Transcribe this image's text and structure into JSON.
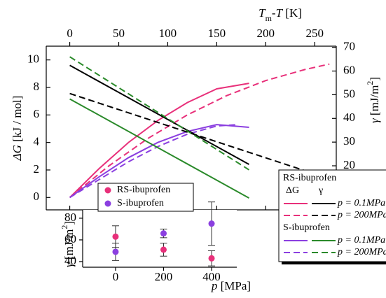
{
  "chart_data": [
    {
      "type": "line",
      "top_axis_label": [
        "T",
        "m",
        "-T",
        " [K]"
      ],
      "ylabel": [
        "ΔG",
        " [kJ / mol]"
      ],
      "y2label": [
        "γ",
        " [mJ/m",
        "2",
        "]"
      ],
      "xlim": [
        -24,
        272
      ],
      "xticks": [
        0,
        50,
        100,
        150,
        200,
        250
      ],
      "ylim": [
        -0.9,
        11
      ],
      "yticks": [
        0,
        2,
        4,
        6,
        8,
        10
      ],
      "y2lim": [
        1.4,
        70.5
      ],
      "y2ticks": [
        20,
        30,
        40,
        50,
        60,
        70
      ],
      "series": [
        {
          "color": "#e8307a",
          "dashed": false,
          "x": [
            0,
            30,
            60,
            90,
            120,
            150,
            183
          ],
          "values": [
            0,
            2.1,
            4.0,
            5.6,
            6.9,
            7.9,
            8.3
          ]
        },
        {
          "color": "#e8307a",
          "dashed": true,
          "x": [
            0,
            40,
            80,
            120,
            160,
            200,
            240,
            265
          ],
          "values": [
            0,
            2.3,
            4.3,
            6.0,
            7.4,
            8.5,
            9.3,
            9.7
          ]
        },
        {
          "color": "#8b3fe0",
          "dashed": false,
          "x": [
            0,
            30,
            60,
            90,
            120,
            150,
            183
          ],
          "values": [
            0,
            1.5,
            2.9,
            4.0,
            4.8,
            5.3,
            5.1
          ]
        },
        {
          "color": "#8b3fe0",
          "dashed": true,
          "x": [
            0,
            30,
            60,
            90,
            120,
            150,
            172
          ],
          "values": [
            0,
            1.3,
            2.6,
            3.7,
            4.6,
            5.2,
            5.3
          ]
        },
        {
          "color": "#000000",
          "dashed": false,
          "axis": "y2",
          "x": [
            0,
            183
          ],
          "values": [
            62.4,
            20.6
          ]
        },
        {
          "color": "#000000",
          "dashed": true,
          "axis": "y2",
          "x": [
            0,
            272
          ],
          "values": [
            50.5,
            13.6
          ]
        },
        {
          "color": "#2a8a2a",
          "dashed": false,
          "axis": "y2",
          "x": [
            0,
            183
          ],
          "values": [
            48.2,
            6.4
          ]
        },
        {
          "color": "#2a8a2a",
          "dashed": true,
          "axis": "y2",
          "x": [
            0,
            183
          ],
          "values": [
            66,
            18.3
          ]
        }
      ],
      "legend": {
        "groups": [
          {
            "title": "RS-ibuprofen",
            "headers": [
              "ΔG",
              "γ"
            ],
            "rows": [
              "p = 0.1MPa",
              "p = 200MPa"
            ]
          },
          {
            "title": "S-ibuprofen",
            "rows": [
              "p = 0.1MPa",
              "p = 200MPa"
            ]
          }
        ]
      }
    },
    {
      "type": "scatter",
      "xlabel": [
        "p",
        " [MPa]"
      ],
      "ylabel": [
        "γ",
        " [mJ/m",
        "2",
        "]"
      ],
      "xlim": [
        -137,
        505
      ],
      "xticks": [
        0,
        200,
        400
      ],
      "ylim": [
        34.8,
        87.7
      ],
      "yticks": [
        40,
        60,
        80
      ],
      "series": [
        {
          "name": "RS-ibuprofen",
          "color": "#e8307a",
          "x": [
            0,
            200,
            400
          ],
          "values": [
            63,
            51,
            43
          ],
          "errors": [
            10,
            6,
            7
          ]
        },
        {
          "name": "S-ibuprofen",
          "color": "#8b3fe0",
          "x": [
            0,
            200,
            400
          ],
          "values": [
            49,
            66,
            75
          ],
          "errors": [
            8,
            4,
            20
          ]
        }
      ]
    }
  ]
}
